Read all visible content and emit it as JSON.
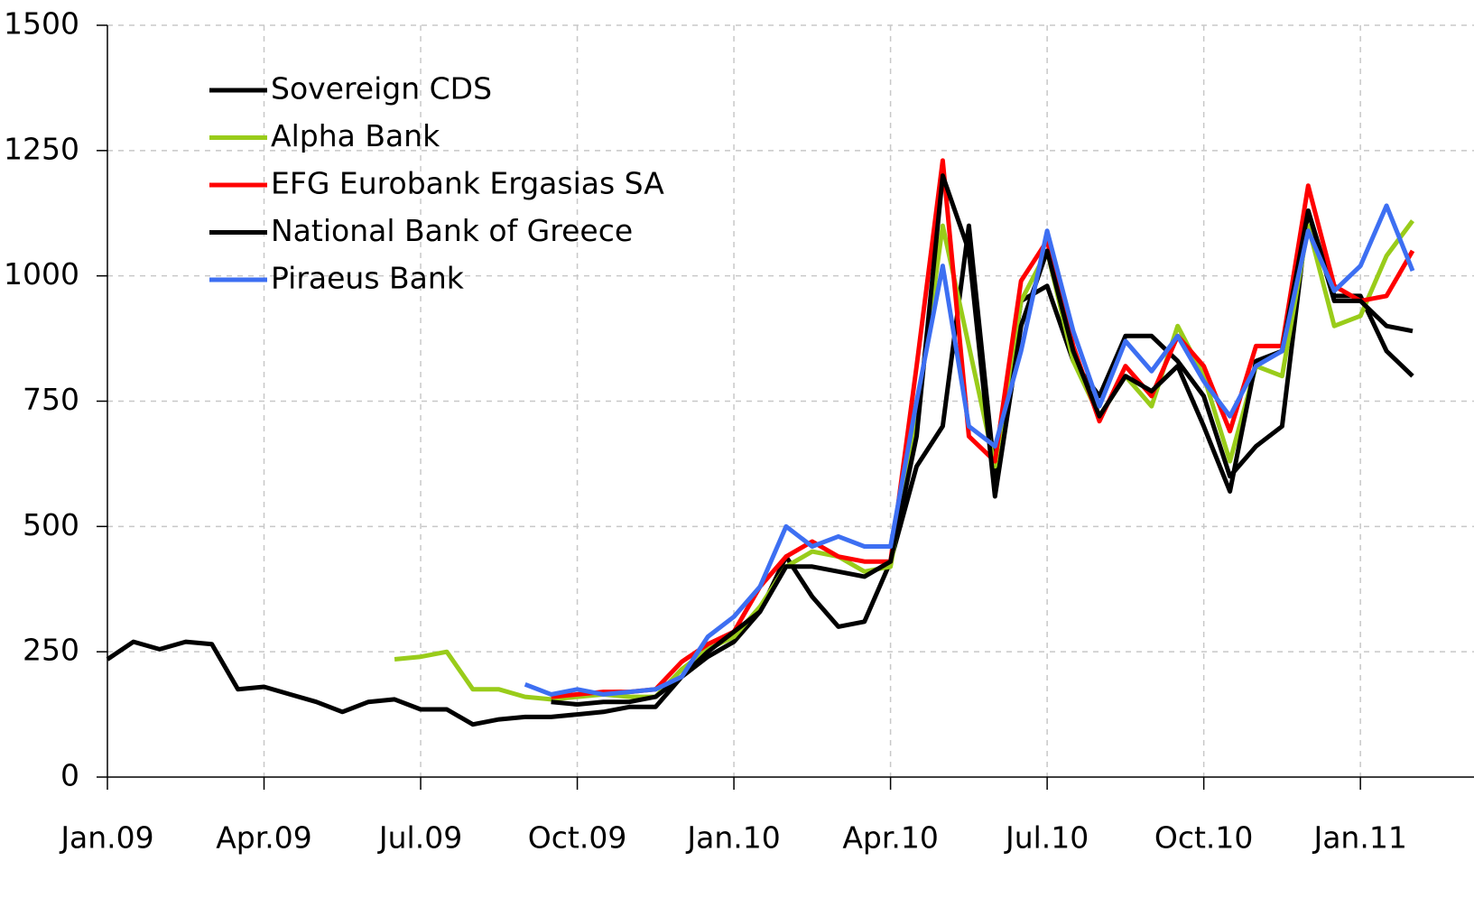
{
  "chart_data": {
    "type": "line",
    "categories": [
      "Jan.09",
      null,
      null,
      null,
      null,
      null,
      "Apr.09",
      null,
      null,
      null,
      null,
      null,
      "Jul.09",
      null,
      null,
      null,
      null,
      null,
      "Oct.09",
      null,
      null,
      null,
      null,
      null,
      "Jan.10",
      null,
      null,
      null,
      null,
      null,
      "Apr.10",
      null,
      null,
      null,
      null,
      null,
      "Jul.10",
      null,
      null,
      null,
      null,
      null,
      "Oct.10",
      null,
      null,
      null,
      null,
      null,
      "Jan.11",
      null,
      null
    ],
    "series": [
      {
        "name": "Sovereign CDS",
        "color": "#000000",
        "values": [
          235,
          270,
          255,
          270,
          265,
          175,
          180,
          165,
          150,
          130,
          150,
          155,
          135,
          135,
          105,
          115,
          120,
          120,
          125,
          130,
          140,
          140,
          200,
          240,
          270,
          330,
          440,
          360,
          300,
          310,
          430,
          620,
          700,
          1100,
          600,
          950,
          980,
          830,
          760,
          880,
          880,
          830,
          760,
          600,
          660,
          700,
          1130,
          960,
          960,
          850,
          800
        ]
      },
      {
        "name": "Alpha Bank",
        "color": "#99cc1a",
        "values": [
          null,
          null,
          null,
          null,
          null,
          null,
          null,
          null,
          null,
          null,
          null,
          235,
          240,
          250,
          175,
          175,
          160,
          155,
          160,
          165,
          160,
          160,
          215,
          255,
          280,
          340,
          420,
          450,
          440,
          410,
          420,
          720,
          1100,
          860,
          620,
          950,
          1050,
          830,
          720,
          800,
          740,
          900,
          800,
          630,
          820,
          800,
          1100,
          900,
          920,
          1040,
          1110
        ]
      },
      {
        "name": "EFG Eurobank Ergasias SA",
        "color": "#ff0000",
        "values": [
          null,
          null,
          null,
          null,
          null,
          null,
          null,
          null,
          null,
          null,
          null,
          null,
          null,
          null,
          null,
          null,
          null,
          160,
          165,
          170,
          170,
          175,
          230,
          265,
          290,
          380,
          440,
          470,
          440,
          430,
          430,
          820,
          1230,
          680,
          630,
          990,
          1070,
          860,
          710,
          820,
          760,
          880,
          820,
          690,
          860,
          860,
          1180,
          980,
          950,
          960,
          1050
        ]
      },
      {
        "name": "National Bank of Greece",
        "color": "#000000",
        "values": [
          null,
          null,
          null,
          null,
          null,
          null,
          null,
          null,
          null,
          null,
          null,
          null,
          null,
          null,
          null,
          null,
          null,
          150,
          145,
          150,
          150,
          160,
          200,
          250,
          290,
          330,
          420,
          420,
          410,
          400,
          430,
          680,
          1200,
          1050,
          560,
          900,
          1050,
          850,
          720,
          800,
          770,
          820,
          700,
          570,
          830,
          850,
          1130,
          950,
          950,
          900,
          890
        ]
      },
      {
        "name": "Piraeus Bank",
        "color": "#3d6ff2",
        "values": [
          null,
          null,
          null,
          null,
          null,
          null,
          null,
          null,
          null,
          null,
          null,
          null,
          null,
          null,
          null,
          null,
          185,
          165,
          175,
          165,
          170,
          175,
          200,
          280,
          320,
          380,
          500,
          460,
          480,
          460,
          460,
          750,
          1020,
          700,
          660,
          850,
          1090,
          890,
          740,
          870,
          810,
          880,
          790,
          720,
          820,
          850,
          1090,
          970,
          1020,
          1140,
          1010
        ]
      }
    ],
    "ylim": [
      0,
      1500
    ],
    "yticks": [
      0,
      250,
      500,
      750,
      1000,
      1250,
      1500
    ],
    "grid": true,
    "legend": "upper left"
  }
}
